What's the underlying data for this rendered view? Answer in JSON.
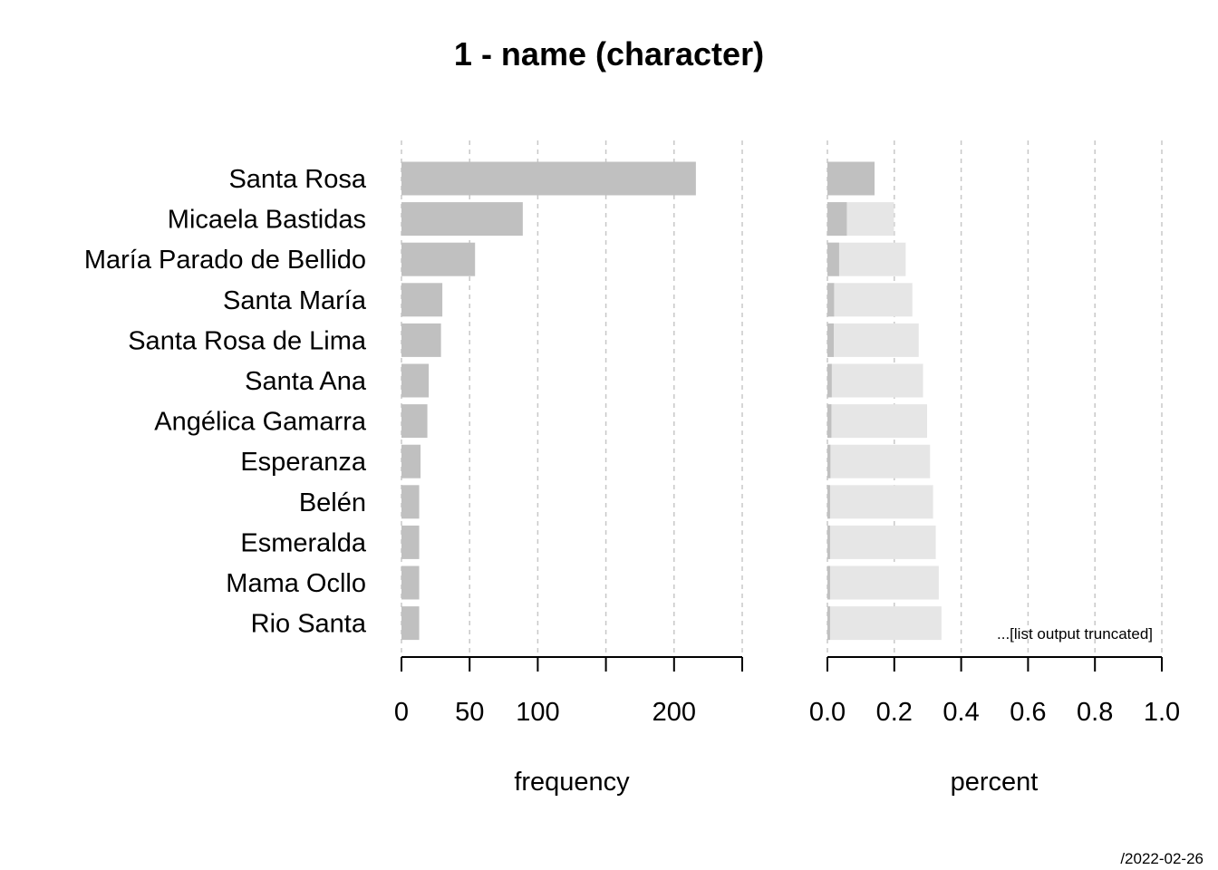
{
  "chart_data": {
    "type": "bar",
    "title": "1 - name (character)",
    "categories": [
      "Santa Rosa",
      "Micaela Bastidas",
      "María Parado de Bellido",
      "Santa María",
      "Santa Rosa de Lima",
      "Santa Ana",
      "Angélica Gamarra",
      "Esperanza",
      "Belén",
      "Esmeralda",
      "Mama Ocllo",
      "Rio Santa"
    ],
    "frequency": {
      "xlabel": "frequency",
      "xlim": [
        0,
        250
      ],
      "ticks": [
        0,
        50,
        100,
        150,
        200,
        250
      ],
      "tick_labels": [
        "0",
        "50",
        "100",
        "",
        "200",
        ""
      ],
      "values": [
        216,
        89,
        54,
        30,
        29,
        20,
        19,
        14,
        13,
        13,
        13,
        13
      ],
      "color": "#c0c0c0"
    },
    "percent": {
      "xlabel": "percent",
      "xlim": [
        0,
        1.0
      ],
      "ticks": [
        0,
        0.2,
        0.4,
        0.6,
        0.8,
        1.0
      ],
      "tick_labels": [
        "0.0",
        "0.2",
        "0.4",
        "0.6",
        "0.8",
        "1.0"
      ],
      "values": [
        0.141,
        0.058,
        0.035,
        0.02,
        0.019,
        0.013,
        0.012,
        0.009,
        0.008,
        0.008,
        0.008,
        0.008
      ],
      "cumulative": [
        0.141,
        0.199,
        0.234,
        0.254,
        0.273,
        0.286,
        0.298,
        0.307,
        0.316,
        0.324,
        0.333,
        0.341
      ],
      "color": "#c0c0c0",
      "cumulative_color": "#e6e6e6",
      "note": "...[list output truncated]"
    },
    "grid": "vertical dashed",
    "footer": "/2022-02-26"
  }
}
